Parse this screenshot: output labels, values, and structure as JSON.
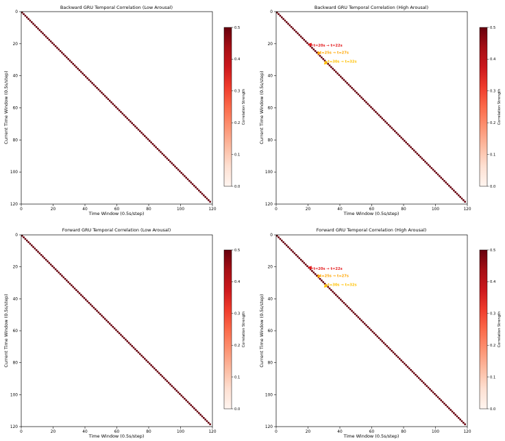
{
  "chart_data": [
    {
      "type": "heatmap",
      "title": "Backward GRU Temporal Correlation (Low Arousal)",
      "xlabel": "Time Window (0.5s/step)",
      "ylabel": "Current Time Window (0.5s/step)",
      "xlim": [
        0,
        120
      ],
      "ylim": [
        120,
        0
      ],
      "x_ticks": [
        0,
        20,
        40,
        60,
        80,
        100,
        120
      ],
      "y_ticks": [
        0,
        20,
        40,
        60,
        80,
        100,
        120
      ],
      "matrix": {
        "size": 119,
        "diagonal_value": 0.5,
        "off_diagonal_value": 0.0
      },
      "colorbar": {
        "label": "Correlation Strength",
        "range": [
          0.0,
          0.5
        ],
        "ticks": [
          "0.0",
          "0.1",
          "0.2",
          "0.3",
          "0.4",
          "0.5"
        ]
      },
      "annotations": [],
      "grid": false
    },
    {
      "type": "heatmap",
      "title": "Backward GRU Temporal Correlation (High Arousal)",
      "xlabel": "Time Window (0.5s/step)",
      "ylabel": "Current Time Window (0.5s/step)",
      "xlim": [
        0,
        120
      ],
      "ylim": [
        120,
        0
      ],
      "x_ticks": [
        0,
        20,
        40,
        60,
        80,
        100,
        120
      ],
      "y_ticks": [
        0,
        20,
        40,
        60,
        80,
        100,
        120
      ],
      "matrix": {
        "size": 119,
        "diagonal_value": 0.5,
        "off_diagonal_value": 0.0
      },
      "colorbar": {
        "label": "Correlation Strength",
        "range": [
          0.0,
          0.5
        ],
        "ticks": [
          "0.0",
          "0.1",
          "0.2",
          "0.3",
          "0.4",
          "0.5"
        ]
      },
      "annotations": [
        {
          "text": "t=20s → t=22s",
          "color": "#e31a1c",
          "point": [
            20,
            20
          ],
          "text_at": [
            23,
            21
          ]
        },
        {
          "text": "t=25s → t=27s",
          "color": "#ffa500",
          "point": [
            26,
            27
          ],
          "text_at": [
            27,
            25.5
          ]
        },
        {
          "text": "t=30s → t=32s",
          "color": "#ffc000",
          "point": [
            30,
            33
          ],
          "text_at": [
            32,
            31
          ]
        }
      ],
      "grid": false
    },
    {
      "type": "heatmap",
      "title": "Forward GRU Temporal Correlation (Low Arousal)",
      "xlabel": "Time Window (0.5s/step)",
      "ylabel": "Current Time Window (0.5s/step)",
      "xlim": [
        0,
        120
      ],
      "ylim": [
        120,
        0
      ],
      "x_ticks": [
        0,
        20,
        40,
        60,
        80,
        100,
        120
      ],
      "y_ticks": [
        0,
        20,
        40,
        60,
        80,
        100,
        120
      ],
      "matrix": {
        "size": 119,
        "diagonal_value": 0.5,
        "off_diagonal_value": 0.0
      },
      "colorbar": {
        "label": "Correlation Strength",
        "range": [
          0.0,
          0.5
        ],
        "ticks": [
          "0.0",
          "0.1",
          "0.2",
          "0.3",
          "0.4",
          "0.5"
        ]
      },
      "annotations": [],
      "grid": false
    },
    {
      "type": "heatmap",
      "title": "Forward GRU Temporal Correlation (High Arousal)",
      "xlabel": "Time Window (0.5s/step)",
      "ylabel": "Current Time Window (0.5s/step)",
      "xlim": [
        0,
        120
      ],
      "ylim": [
        120,
        0
      ],
      "x_ticks": [
        0,
        20,
        40,
        60,
        80,
        100,
        120
      ],
      "y_ticks": [
        0,
        20,
        40,
        60,
        80,
        100,
        120
      ],
      "matrix": {
        "size": 119,
        "diagonal_value": 0.5,
        "off_diagonal_value": 0.0
      },
      "colorbar": {
        "label": "Correlation Strength",
        "range": [
          0.0,
          0.5
        ],
        "ticks": [
          "0.0",
          "0.1",
          "0.2",
          "0.3",
          "0.4",
          "0.5"
        ]
      },
      "annotations": [
        {
          "text": "t=20s → t=22s",
          "color": "#e31a1c",
          "point": [
            20,
            20
          ],
          "text_at": [
            23,
            21
          ]
        },
        {
          "text": "t=25s → t=27s",
          "color": "#ffa500",
          "point": [
            26,
            27
          ],
          "text_at": [
            27,
            25.5
          ]
        },
        {
          "text": "t=30s → t=32s",
          "color": "#ffc000",
          "point": [
            30,
            33
          ],
          "text_at": [
            32,
            31
          ]
        }
      ],
      "grid": false
    }
  ],
  "colors": {
    "diagonal": "#67000d",
    "background": "#ffffff",
    "axis": "#000000",
    "colormap": [
      "#fff5f0",
      "#fee0d2",
      "#fcbba1",
      "#fc9272",
      "#fb6a4a",
      "#ef3b2c",
      "#cb181d",
      "#a50f15",
      "#67000d"
    ]
  }
}
